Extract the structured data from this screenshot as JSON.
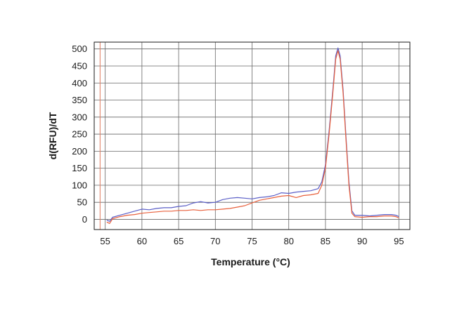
{
  "chart_data": {
    "type": "line",
    "title": "",
    "xlabel": "Temperature (°C)",
    "ylabel": "d(RFU)/dT",
    "xlim": [
      53.5,
      96.5
    ],
    "ylim": [
      -30,
      520
    ],
    "x_ticks": [
      55,
      60,
      65,
      70,
      75,
      80,
      85,
      90,
      95
    ],
    "y_ticks": [
      0,
      50,
      100,
      150,
      200,
      250,
      300,
      350,
      400,
      450,
      500
    ],
    "grid": true,
    "legend": "none",
    "vertical_markers": [
      {
        "x": 54.3,
        "color": "#e07a5f"
      }
    ],
    "series": [
      {
        "color": "#5b5fc7",
        "points": [
          [
            55.2,
            -2
          ],
          [
            55.6,
            -6
          ],
          [
            56,
            6
          ],
          [
            57,
            12
          ],
          [
            58,
            18
          ],
          [
            59,
            24
          ],
          [
            60,
            30
          ],
          [
            61,
            28
          ],
          [
            62,
            32
          ],
          [
            63,
            34
          ],
          [
            64,
            34
          ],
          [
            65,
            38
          ],
          [
            66,
            40
          ],
          [
            67,
            48
          ],
          [
            68,
            52
          ],
          [
            69,
            48
          ],
          [
            70,
            50
          ],
          [
            71,
            58
          ],
          [
            72,
            62
          ],
          [
            73,
            64
          ],
          [
            74,
            62
          ],
          [
            75,
            60
          ],
          [
            76,
            64
          ],
          [
            77,
            66
          ],
          [
            78,
            70
          ],
          [
            79,
            78
          ],
          [
            80,
            76
          ],
          [
            81,
            80
          ],
          [
            82,
            82
          ],
          [
            83,
            84
          ],
          [
            84,
            90
          ],
          [
            84.5,
            110
          ],
          [
            85,
            160
          ],
          [
            85.5,
            260
          ],
          [
            86,
            380
          ],
          [
            86.4,
            480
          ],
          [
            86.7,
            503
          ],
          [
            87,
            480
          ],
          [
            87.4,
            380
          ],
          [
            87.8,
            240
          ],
          [
            88.2,
            110
          ],
          [
            88.6,
            25
          ],
          [
            89,
            12
          ],
          [
            90,
            12
          ],
          [
            91,
            10
          ],
          [
            92,
            12
          ],
          [
            93,
            14
          ],
          [
            94,
            14
          ],
          [
            94.6,
            12
          ],
          [
            95,
            8
          ]
        ]
      },
      {
        "color": "#e8603c",
        "points": [
          [
            55.2,
            -8
          ],
          [
            55.6,
            -12
          ],
          [
            56,
            2
          ],
          [
            57,
            8
          ],
          [
            58,
            12
          ],
          [
            59,
            14
          ],
          [
            60,
            18
          ],
          [
            61,
            20
          ],
          [
            62,
            22
          ],
          [
            63,
            24
          ],
          [
            64,
            24
          ],
          [
            65,
            26
          ],
          [
            66,
            26
          ],
          [
            67,
            28
          ],
          [
            68,
            26
          ],
          [
            69,
            28
          ],
          [
            70,
            28
          ],
          [
            71,
            30
          ],
          [
            72,
            32
          ],
          [
            73,
            36
          ],
          [
            74,
            40
          ],
          [
            75,
            48
          ],
          [
            76,
            56
          ],
          [
            77,
            60
          ],
          [
            78,
            64
          ],
          [
            79,
            68
          ],
          [
            80,
            70
          ],
          [
            81,
            64
          ],
          [
            82,
            70
          ],
          [
            83,
            72
          ],
          [
            84,
            76
          ],
          [
            84.5,
            100
          ],
          [
            85,
            150
          ],
          [
            85.5,
            250
          ],
          [
            86,
            370
          ],
          [
            86.4,
            470
          ],
          [
            86.7,
            495
          ],
          [
            87,
            470
          ],
          [
            87.4,
            370
          ],
          [
            87.8,
            230
          ],
          [
            88.2,
            100
          ],
          [
            88.6,
            18
          ],
          [
            89,
            8
          ],
          [
            90,
            6
          ],
          [
            91,
            8
          ],
          [
            92,
            8
          ],
          [
            93,
            10
          ],
          [
            94,
            10
          ],
          [
            94.6,
            8
          ],
          [
            95,
            4
          ]
        ]
      }
    ]
  }
}
